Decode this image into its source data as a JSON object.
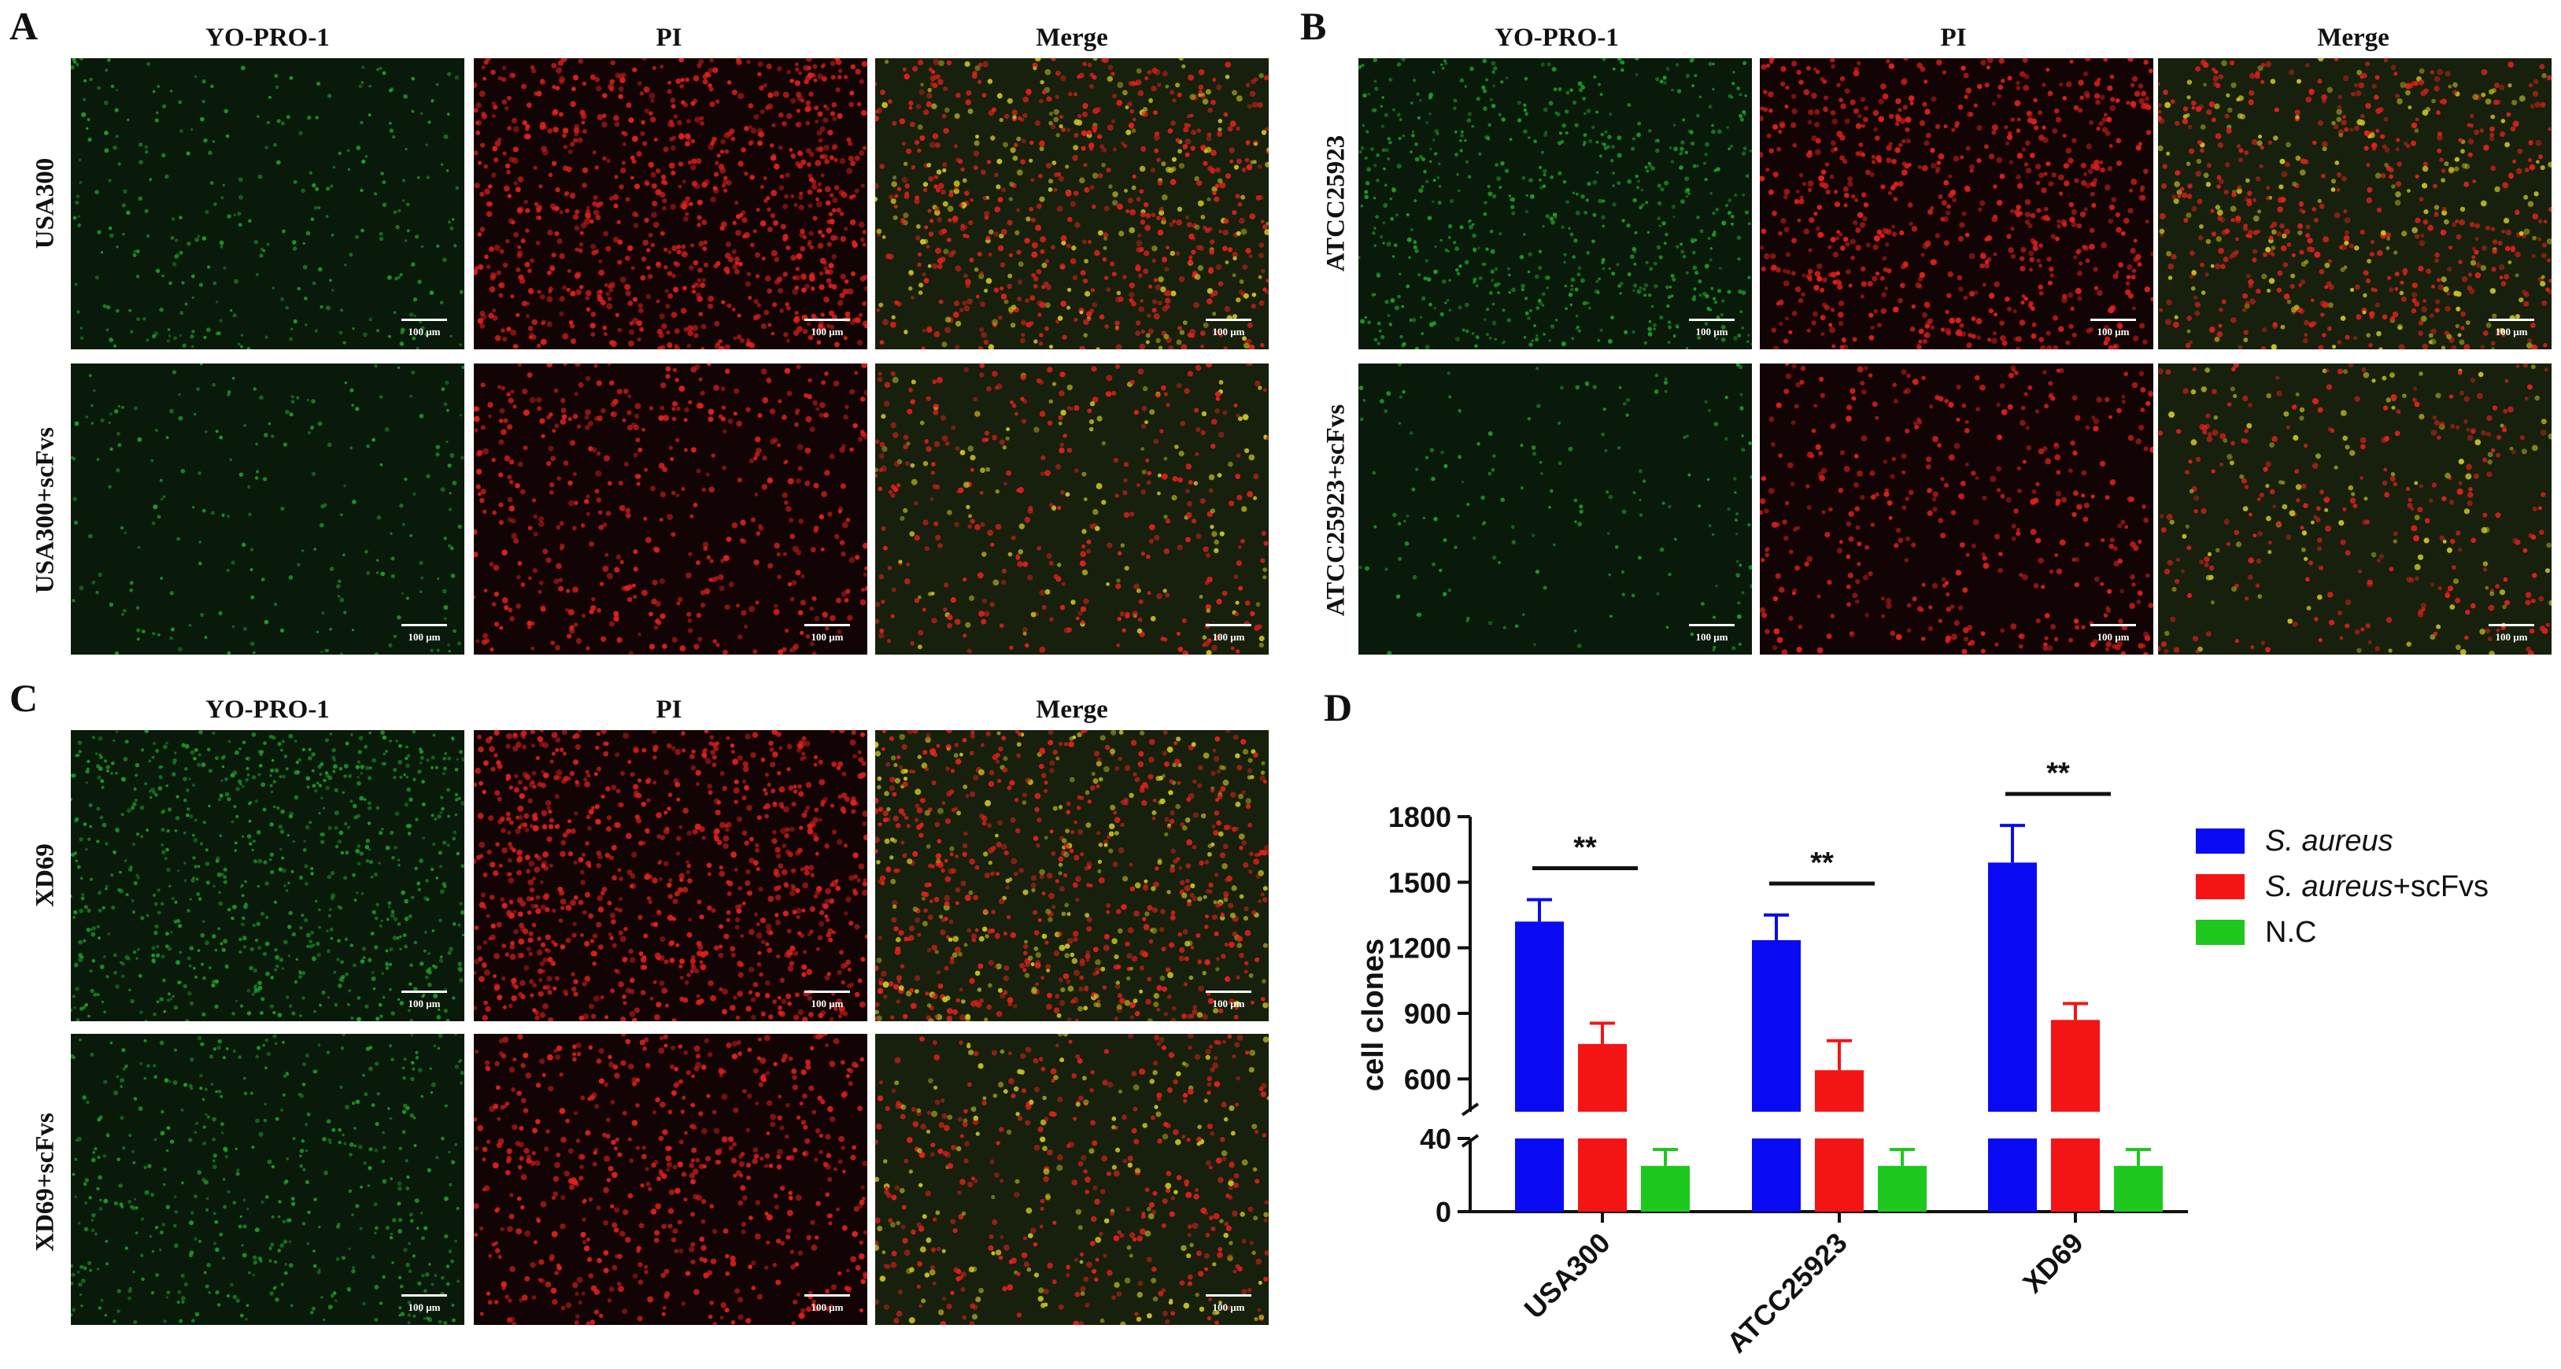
{
  "figure": {
    "panel_A": {
      "letter": "A",
      "columns": [
        "YO-PRO-1",
        "PI",
        "Merge"
      ],
      "rows": [
        "USA300",
        "USA300+scFvs"
      ]
    },
    "panel_B": {
      "letter": "B",
      "columns": [
        "YO-PRO-1",
        "PI",
        "Merge"
      ],
      "rows": [
        "ATCC25923",
        "ATCC25923+scFvs"
      ]
    },
    "panel_C": {
      "letter": "C",
      "columns": [
        "YO-PRO-1",
        "PI",
        "Merge"
      ],
      "rows": [
        "XD69",
        "XD69+scFvs"
      ]
    },
    "panel_D": {
      "letter": "D"
    },
    "scale_bar_label": "100 μm"
  },
  "colors": {
    "s_aureus": "#0a0af5",
    "s_aureus_scfvs": "#f51414",
    "nc": "#1ec81e",
    "micro_green": "#1e9a2a",
    "micro_red": "#e0201c",
    "micro_bg": "#0b140b"
  },
  "chart_data": {
    "type": "bar",
    "categories": [
      "USA300",
      "ATCC25923",
      "XD69"
    ],
    "ylabel": "cell clones",
    "broken_y_axis": true,
    "lower_segment_ylim": [
      0,
      40
    ],
    "upper_segment_ylim": [
      450,
      1800
    ],
    "yticks_lower": [
      0,
      40
    ],
    "yticks_upper": [
      600,
      900,
      1200,
      1500,
      1800
    ],
    "series": [
      {
        "name": "S. aureus",
        "legend_italic": "S. aureus",
        "legend_suffix": "",
        "color_key": "s_aureus",
        "values": [
          1320,
          1235,
          1590
        ],
        "errors": [
          100,
          115,
          170
        ]
      },
      {
        "name": "S. aureus+scFvs",
        "legend_italic": "S. aureus",
        "legend_suffix": "+scFvs",
        "color_key": "s_aureus_scfvs",
        "values": [
          760,
          640,
          870
        ],
        "errors": [
          95,
          135,
          75
        ]
      },
      {
        "name": "N.C",
        "legend_italic": "",
        "legend_suffix": "N.C",
        "color_key": "nc",
        "values": [
          25,
          25,
          25
        ],
        "errors": [
          9,
          9,
          9
        ]
      }
    ],
    "significance": [
      {
        "category": "USA300",
        "label": "**"
      },
      {
        "category": "ATCC25923",
        "label": "**"
      },
      {
        "category": "XD69",
        "label": "**"
      }
    ]
  }
}
